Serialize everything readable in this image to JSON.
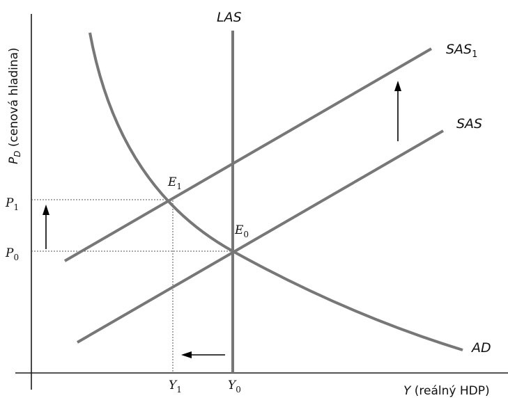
{
  "diagram": {
    "las_label": "LAS",
    "sas1": {
      "main": "SAS",
      "sub": "1"
    },
    "sas_label": "SAS",
    "ad_label": "AD",
    "e1": {
      "main": "E",
      "sub": "1"
    },
    "e0": {
      "main": "E",
      "sub": "0"
    },
    "p1": {
      "main": "P",
      "sub": "1"
    },
    "p0": {
      "main": "P",
      "sub": "0"
    },
    "y1": {
      "main": "Y",
      "sub": "1"
    },
    "y0": {
      "main": "Y",
      "sub": "0"
    },
    "x_axis_label": {
      "var": "Y",
      "text": " (reálný HDP)"
    },
    "y_axis_label": {
      "var": "P",
      "sub": "D",
      "text": " (cenová hladina)"
    }
  }
}
